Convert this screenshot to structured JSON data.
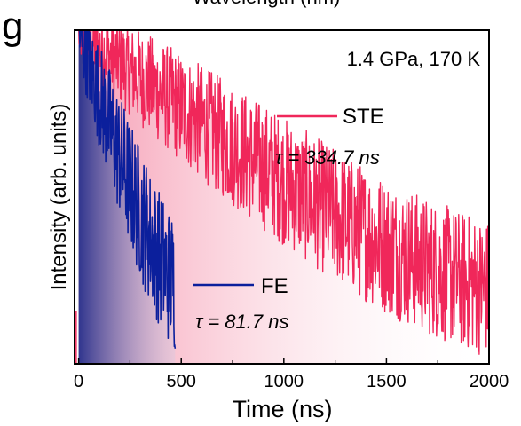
{
  "top_label": "Wavelength (nm)",
  "panel_label": "g",
  "chart_data": {
    "type": "line",
    "annotation": "1.4 GPa, 170 K",
    "xlabel": "Time (ns)",
    "ylabel": "Intensity (arb. units)",
    "xlim": [
      -20,
      2000
    ],
    "yscale": "log",
    "ylim": [
      0.0015,
      1.05
    ],
    "x_ticks": [
      "0",
      "500",
      "1000",
      "1500",
      "2000"
    ],
    "grid": false,
    "series": [
      {
        "name": "STE",
        "tau_label": "τ = 334.7 ns",
        "color": "#f0275a",
        "fill": "#f7a3b8",
        "tau_ns": 334.7,
        "x_range_ns": [
          0,
          2000
        ],
        "peak_intensity": 1.0,
        "noise_floor": 0.004
      },
      {
        "name": "FE",
        "tau_label": "τ = 81.7 ns",
        "color": "#0b1f9c",
        "fill": "#1e2d8f",
        "tau_ns": 81.7,
        "x_range_ns": [
          0,
          470
        ],
        "peak_intensity": 1.0,
        "noise_floor": 0.004
      }
    ]
  }
}
